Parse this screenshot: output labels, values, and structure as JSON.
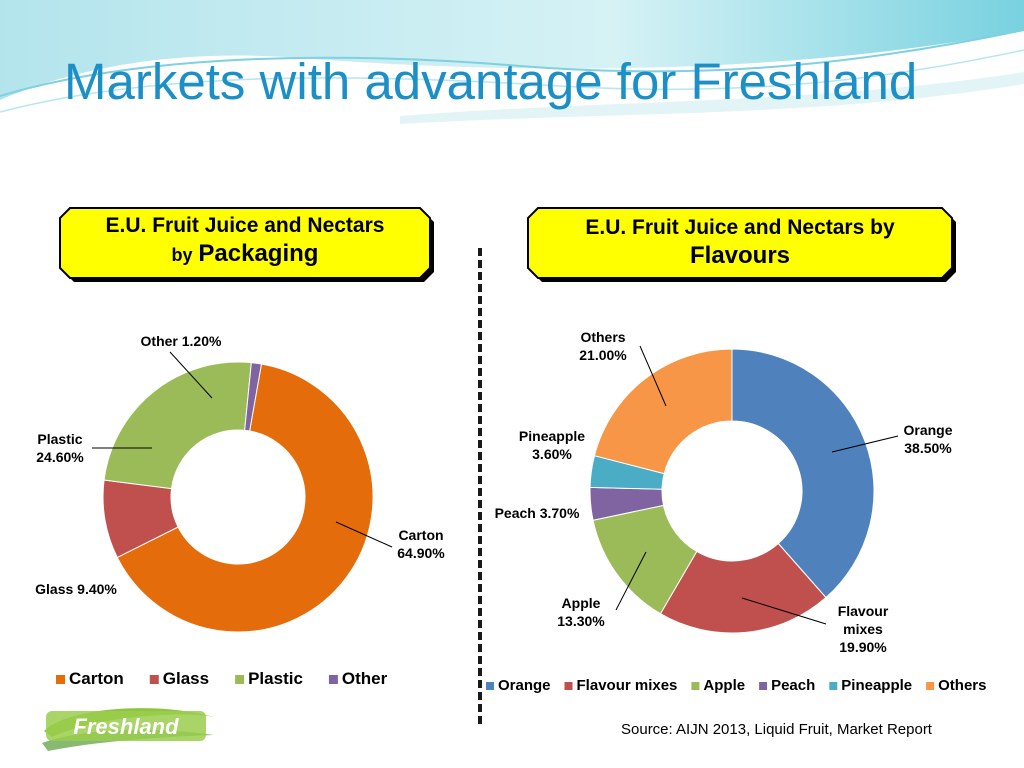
{
  "slide": {
    "title": "Markets with advantage for Freshland",
    "source": "Source: AIJN 2013, Liquid Fruit, Market Report",
    "logo_text": "Freshland"
  },
  "colors": {
    "title": "#1c8fc6",
    "label_box_fill": "#ffff00",
    "Carton": "#e46c0a",
    "Glass": "#c0504d",
    "Plastic": "#9bbb59",
    "Other": "#8064a2",
    "Orange": "#4f81bd",
    "Flavour mixes": "#c0504d",
    "Apple": "#9bbb59",
    "Peach": "#8064a2",
    "Pineapple": "#4bacc6",
    "Others": "#f79646"
  },
  "chart_data": [
    {
      "type": "pie",
      "title_line1": "E.U. Fruit Juice and Nectars",
      "title_line2_prefix": "by",
      "title_line2_emph": "Packaging",
      "donut": true,
      "legend": "bottom",
      "categories": [
        "Carton",
        "Glass",
        "Plastic",
        "Other"
      ],
      "values": [
        64.9,
        9.4,
        24.6,
        1.2
      ],
      "data_labels": [
        [
          "Carton",
          "64.90%"
        ],
        [
          "Glass  9.40%"
        ],
        [
          "Plastic",
          "24.60%"
        ],
        [
          "Other  1.20%"
        ]
      ]
    },
    {
      "type": "pie",
      "title_line1": "E.U. Fruit Juice and Nectars by",
      "title_line2_prefix": "",
      "title_line2_emph": "Flavours",
      "donut": true,
      "legend": "bottom",
      "categories": [
        "Orange",
        "Flavour mixes",
        "Apple",
        "Peach",
        "Pineapple",
        "Others"
      ],
      "values": [
        38.5,
        19.9,
        13.3,
        3.7,
        3.6,
        21.0
      ],
      "data_labels": [
        [
          "Orange",
          "38.50%"
        ],
        [
          "Flavour",
          "mixes",
          "19.90%"
        ],
        [
          "Apple",
          "13.30%"
        ],
        [
          "Peach 3.70%"
        ],
        [
          "Pineapple",
          "3.60%"
        ],
        [
          "Others",
          "21.00%"
        ]
      ]
    }
  ]
}
